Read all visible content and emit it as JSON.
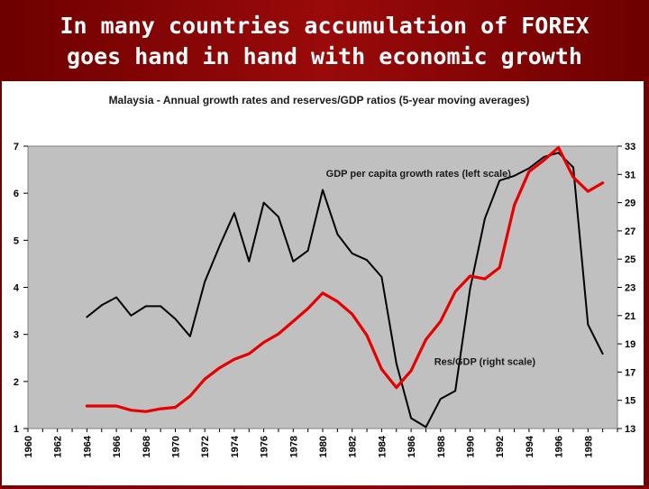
{
  "slide": {
    "title_line1": "In many countries accumulation of FOREX",
    "title_line2": "goes hand in hand with economic growth"
  },
  "chart_data": {
    "type": "line",
    "title": "Malaysia - Annual growth rates and reserves/GDP ratios (5-year moving averages)",
    "x_tick_labels": [
      "1960",
      "1962",
      "1964",
      "1966",
      "1968",
      "1970",
      "1972",
      "1974",
      "1976",
      "1978",
      "1980",
      "1982",
      "1984",
      "1986",
      "1988",
      "1990",
      "1992",
      "1994",
      "1996",
      "1998"
    ],
    "xlim": [
      1960,
      2000
    ],
    "left_axis": {
      "ylim": [
        1,
        7
      ],
      "ticks": [
        1,
        2,
        3,
        4,
        5,
        6,
        7
      ]
    },
    "right_axis": {
      "ylim": [
        13,
        33
      ],
      "ticks": [
        13,
        15,
        17,
        19,
        21,
        23,
        25,
        27,
        29,
        31,
        33
      ]
    },
    "grid": false,
    "background_color": "#c0c0c0",
    "annotations": [
      {
        "text": "GDP per capita growth rates (left scale)",
        "x": 1986.5,
        "y": 6.35,
        "axis": "left"
      },
      {
        "text": "Res/GDP (right scale)",
        "x": 1991,
        "y": 2.35,
        "axis": "left"
      }
    ],
    "series": [
      {
        "label": "GDP per capita growth rates (left scale)",
        "axis": "left",
        "color": "#000000",
        "x": [
          1964,
          1965,
          1966,
          1967,
          1968,
          1969,
          1970,
          1971,
          1972,
          1973,
          1974,
          1975,
          1976,
          1977,
          1978,
          1979,
          1980,
          1981,
          1982,
          1983,
          1984,
          1985,
          1986,
          1987,
          1988,
          1989,
          1990,
          1991,
          1992,
          1993,
          1994,
          1995,
          1996,
          1997,
          1998,
          1999
        ],
        "y": [
          3.37,
          3.62,
          3.79,
          3.4,
          3.6,
          3.6,
          3.33,
          2.96,
          4.12,
          4.88,
          5.58,
          4.55,
          5.8,
          5.5,
          4.55,
          4.78,
          6.07,
          5.13,
          4.72,
          4.58,
          4.22,
          2.38,
          1.22,
          1.03,
          1.63,
          1.8,
          3.97,
          5.46,
          6.27,
          6.37,
          6.53,
          6.77,
          6.86,
          6.55,
          3.21,
          2.59
        ]
      },
      {
        "label": "Res/GDP (right scale)",
        "axis": "right",
        "color": "#e60000",
        "x": [
          1964,
          1965,
          1966,
          1967,
          1968,
          1969,
          1970,
          1971,
          1972,
          1973,
          1974,
          1975,
          1976,
          1977,
          1978,
          1979,
          1980,
          1981,
          1982,
          1983,
          1984,
          1985,
          1986,
          1987,
          1988,
          1989,
          1990,
          1991,
          1992,
          1993,
          1994,
          1995,
          1996,
          1997,
          1998,
          1999
        ],
        "y": [
          14.6,
          14.6,
          14.6,
          14.3,
          14.2,
          14.4,
          14.5,
          15.3,
          16.5,
          17.3,
          17.9,
          18.3,
          19.1,
          19.7,
          20.6,
          21.5,
          22.6,
          22.0,
          21.1,
          19.6,
          17.2,
          15.9,
          17.1,
          19.3,
          20.6,
          22.7,
          23.8,
          23.6,
          24.4,
          28.8,
          31.2,
          32.0,
          32.9,
          30.8,
          29.8,
          30.4
        ]
      }
    ]
  }
}
